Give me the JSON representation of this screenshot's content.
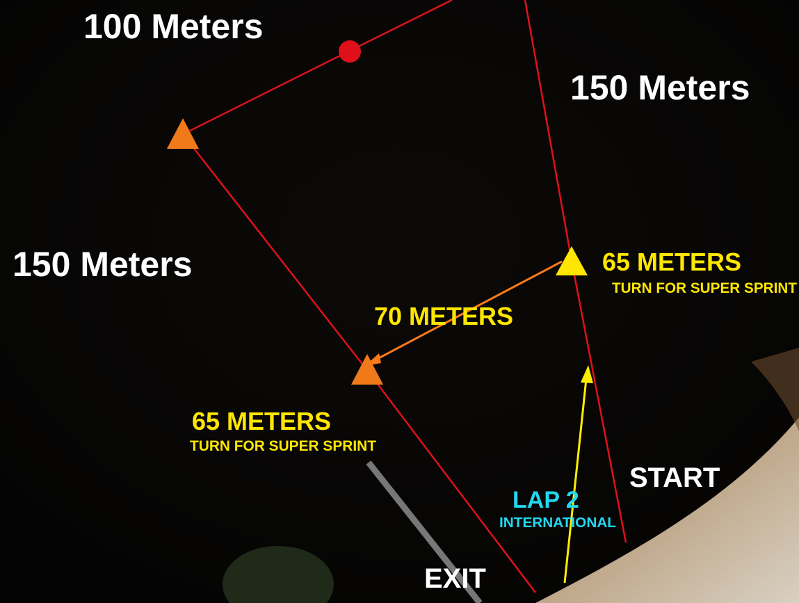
{
  "labels": {
    "top_leg": "100 Meters",
    "right_leg": "150 Meters",
    "left_leg": "150 Meters",
    "right_buoy_distance": "65 METERS",
    "right_buoy_note": "TURN FOR SUPER SPRINT",
    "cross_leg": "70 METERS",
    "left_buoy_distance": "65 METERS",
    "left_buoy_note": "TURN FOR SUPER SPRINT",
    "start": "START",
    "lap": "LAP 2",
    "lap_note": "INTERNATIONAL",
    "exit": "EXIT"
  }
}
